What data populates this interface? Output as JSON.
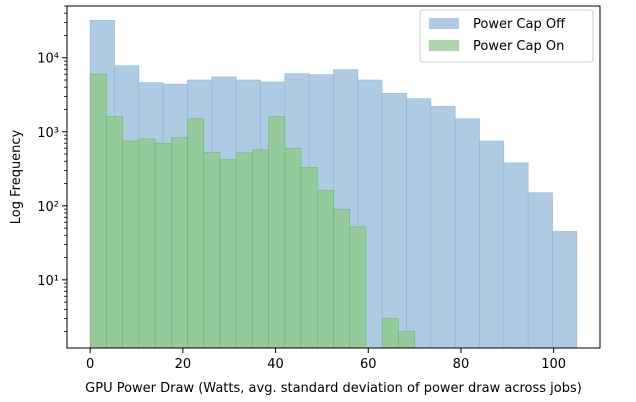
{
  "chart_data": {
    "type": "bar",
    "subtype": "overlaid-histogram",
    "title": "",
    "xlabel": "GPU Power Draw (Watts, avg. standard deviation of power draw across jobs)",
    "ylabel": "Log Frequency",
    "yscale": "log",
    "xlim": [
      -5,
      110
    ],
    "ylim": [
      1.2,
      50000
    ],
    "x_ticks": [
      0,
      20,
      40,
      60,
      80,
      100
    ],
    "y_ticks": [
      10,
      100,
      1000,
      10000
    ],
    "y_tick_labels": [
      "10¹",
      "10²",
      "10³",
      "10⁴"
    ],
    "grid": false,
    "legend_position": "top-right",
    "series": [
      {
        "name": "Power Cap Off",
        "color": "#aecbe3",
        "edge_color": "#8fb5d6",
        "bin_edges": [
          0,
          5.25,
          10.5,
          15.75,
          21,
          26.25,
          31.5,
          36.75,
          42,
          47.25,
          52.5,
          57.75,
          63,
          68.25,
          73.5,
          78.75,
          84,
          89.25,
          94.5,
          99.75,
          105
        ],
        "counts": [
          32000,
          7800,
          4600,
          4400,
          5000,
          5500,
          5000,
          4700,
          6100,
          5900,
          6900,
          5000,
          3300,
          2800,
          2200,
          1500,
          750,
          380,
          150,
          45
        ]
      },
      {
        "name": "Power Cap On",
        "color": "#8fca8f",
        "edge_color": "#6fb56f",
        "bin_edges": [
          0,
          3.5,
          7,
          10.5,
          14,
          17.5,
          21,
          24.5,
          28,
          31.5,
          35,
          38.5,
          42,
          45.5,
          49,
          52.5,
          56,
          59.5,
          63,
          66.5,
          70
        ],
        "counts": [
          6000,
          1600,
          750,
          800,
          700,
          830,
          1500,
          530,
          420,
          520,
          570,
          1600,
          600,
          330,
          160,
          90,
          52,
          0,
          3,
          2
        ]
      }
    ]
  }
}
